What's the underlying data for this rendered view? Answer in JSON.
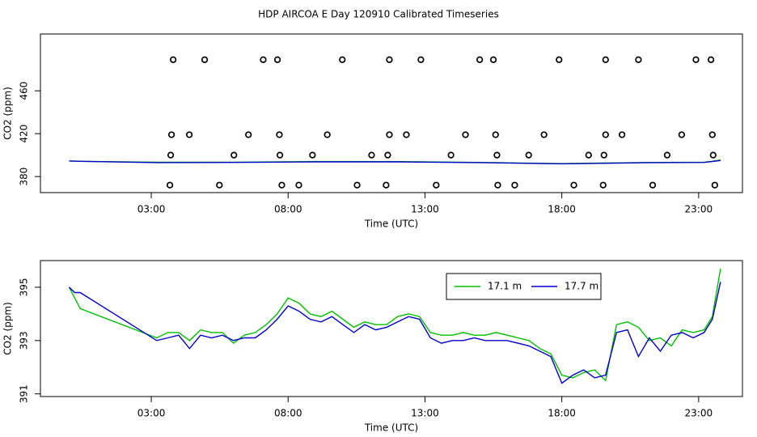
{
  "chart_data": [
    {
      "type": "scatter",
      "title": "HDP AIRCOA E  Day 120910  Calibrated Timeseries",
      "x_label": "Time (UTC)",
      "y_label": "CO2 (ppm)",
      "xlim": [
        -1.05,
        24.6
      ],
      "ylim": [
        365,
        513
      ],
      "xticks": [
        {
          "value": 3,
          "label": "03:00"
        },
        {
          "value": 8,
          "label": "08:00"
        },
        {
          "value": 13,
          "label": "13:00"
        },
        {
          "value": 18,
          "label": "18:00"
        },
        {
          "value": 23,
          "label": "23:00"
        }
      ],
      "yticks": [
        380,
        420,
        460
      ],
      "series": [
        {
          "color": "#000000",
          "style": "points",
          "x": [
            3.8,
            4.95,
            7.09,
            7.61,
            9.98,
            11.7,
            12.85,
            15.0,
            15.5,
            17.9,
            19.6,
            20.8,
            22.9,
            23.45,
            3.74,
            4.39,
            6.55,
            7.68,
            9.43,
            11.7,
            12.32,
            14.48,
            15.58,
            17.35,
            19.6,
            20.2,
            22.38,
            23.5,
            3.71,
            6.02,
            7.7,
            8.89,
            11.05,
            11.64,
            13.95,
            15.63,
            16.79,
            18.98,
            19.54,
            21.85,
            23.53,
            3.68,
            5.49,
            7.77,
            8.39,
            10.52,
            11.58,
            13.41,
            15.66,
            16.28,
            18.44,
            19.51,
            21.32,
            23.59
          ],
          "values": [
            489,
            489,
            489,
            489,
            489,
            489,
            489,
            489,
            489,
            489,
            489,
            489,
            489,
            489,
            419,
            419,
            419,
            419,
            419,
            419,
            419,
            419,
            419,
            419,
            419,
            419,
            419,
            419,
            400,
            400,
            400,
            400,
            400,
            400,
            400,
            400,
            400,
            400,
            400,
            400,
            400,
            372,
            372,
            372,
            372,
            372,
            372,
            372,
            372,
            372,
            372,
            372,
            372,
            372
          ]
        },
        {
          "color": "#00c000",
          "style": "line",
          "x": [
            0,
            0.4,
            3.2,
            6,
            9,
            12,
            15,
            18,
            21,
            23.2,
            23.5,
            23.8
          ],
          "values": [
            394.6,
            394.2,
            393.3,
            393.4,
            394.0,
            393.9,
            393.2,
            392.0,
            393.1,
            393.4,
            394.2,
            395.5
          ]
        },
        {
          "color": "#0000cc",
          "style": "line",
          "x": [
            0,
            0.4,
            3.2,
            6,
            9,
            12,
            15,
            18,
            21,
            23.2,
            23.5,
            23.8
          ],
          "values": [
            394.5,
            394.2,
            393.0,
            393.2,
            393.7,
            393.7,
            393.0,
            391.9,
            392.9,
            393.2,
            394.0,
            395.0
          ]
        }
      ]
    },
    {
      "type": "line",
      "x_label": "Time (UTC)",
      "y_label": "CO2 (ppm)",
      "xlim": [
        -1.05,
        24.6
      ],
      "ylim": [
        390.9,
        396
      ],
      "xticks": [
        {
          "value": 3,
          "label": "03:00"
        },
        {
          "value": 8,
          "label": "08:00"
        },
        {
          "value": 13,
          "label": "13:00"
        },
        {
          "value": 18,
          "label": "18:00"
        },
        {
          "value": 23,
          "label": "23:00"
        }
      ],
      "yticks": [
        391,
        393,
        395
      ],
      "legend": "top-right",
      "series": [
        {
          "name": "17.1 m",
          "color": "#00c000",
          "style": "line",
          "x": [
            0,
            0.2,
            0.4,
            3.2,
            3.6,
            4.0,
            4.4,
            4.8,
            5.2,
            5.6,
            6.0,
            6.4,
            6.8,
            7.2,
            7.6,
            8.0,
            8.4,
            8.8,
            9.2,
            9.6,
            10.0,
            10.4,
            10.8,
            11.2,
            11.6,
            12.0,
            12.4,
            12.8,
            13.2,
            13.6,
            14.0,
            14.4,
            14.8,
            15.2,
            15.6,
            16.0,
            16.4,
            16.8,
            17.2,
            17.6,
            18.0,
            18.4,
            18.8,
            19.2,
            19.6,
            20.0,
            20.4,
            20.8,
            21.2,
            21.6,
            22.0,
            22.4,
            22.8,
            23.2,
            23.5,
            23.8
          ],
          "values": [
            395.0,
            394.6,
            394.2,
            393.1,
            393.3,
            393.3,
            393.0,
            393.4,
            393.3,
            393.3,
            392.9,
            393.2,
            393.3,
            393.6,
            394.0,
            394.6,
            394.4,
            394.0,
            393.9,
            394.1,
            393.8,
            393.5,
            393.7,
            393.6,
            393.6,
            393.9,
            394.0,
            393.9,
            393.3,
            393.2,
            393.2,
            393.3,
            393.2,
            393.2,
            393.3,
            393.2,
            393.1,
            393.0,
            392.7,
            392.5,
            391.7,
            391.6,
            391.8,
            391.9,
            391.5,
            393.6,
            393.7,
            393.5,
            393.0,
            393.1,
            392.8,
            393.4,
            393.3,
            393.4,
            393.9,
            395.7
          ]
        },
        {
          "name": "17.7 m",
          "color": "#0000cc",
          "style": "line",
          "x": [
            0,
            0.2,
            0.4,
            3.2,
            3.6,
            4.0,
            4.4,
            4.8,
            5.2,
            5.6,
            6.0,
            6.4,
            6.8,
            7.2,
            7.6,
            8.0,
            8.4,
            8.8,
            9.2,
            9.6,
            10.0,
            10.4,
            10.8,
            11.2,
            11.6,
            12.0,
            12.4,
            12.8,
            13.2,
            13.6,
            14.0,
            14.4,
            14.8,
            15.2,
            15.6,
            16.0,
            16.4,
            16.8,
            17.2,
            17.6,
            18.0,
            18.4,
            18.8,
            19.2,
            19.6,
            20.0,
            20.4,
            20.8,
            21.2,
            21.6,
            22.0,
            22.4,
            22.8,
            23.2,
            23.5,
            23.8
          ],
          "values": [
            395.0,
            394.8,
            394.8,
            393.0,
            393.1,
            393.2,
            392.7,
            393.2,
            393.1,
            393.2,
            393.0,
            393.1,
            393.1,
            393.4,
            393.8,
            394.3,
            394.1,
            393.8,
            393.7,
            393.9,
            393.6,
            393.3,
            393.6,
            393.4,
            393.5,
            393.7,
            393.9,
            393.8,
            393.1,
            392.9,
            393.0,
            393.0,
            393.1,
            393.0,
            393.0,
            393.0,
            392.9,
            392.8,
            392.6,
            392.4,
            391.4,
            391.7,
            391.9,
            391.6,
            391.7,
            393.3,
            393.4,
            392.4,
            393.1,
            392.6,
            393.2,
            393.3,
            393.1,
            393.3,
            393.8,
            395.2
          ]
        }
      ]
    }
  ]
}
